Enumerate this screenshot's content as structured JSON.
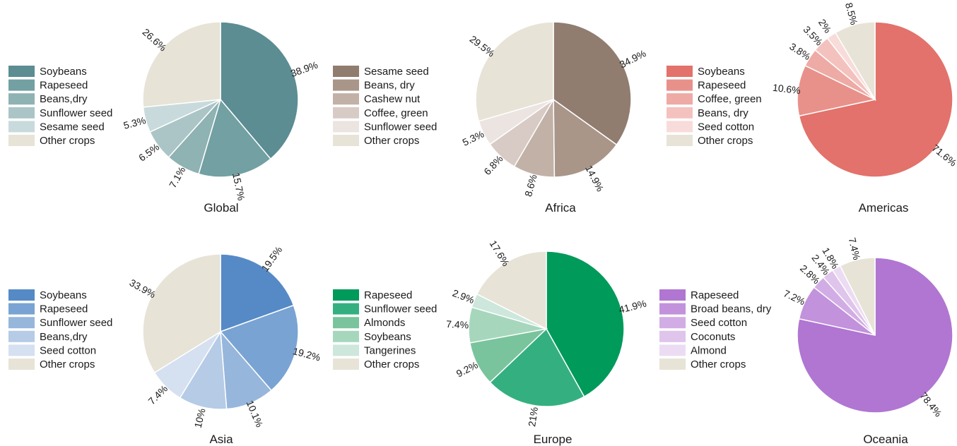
{
  "chart_data": [
    {
      "type": "pie",
      "title": "Global",
      "categories": [
        "Soybeans",
        "Rapeseed",
        "Beans,dry",
        "Sunflower seed",
        "Sesame seed",
        "Other crops"
      ],
      "values": [
        38.9,
        15.7,
        7.1,
        6.5,
        5.3,
        26.6
      ],
      "labels": [
        "38.9%",
        "15.7%",
        "7.1%",
        "6.5%",
        "5.3%",
        "26.6%"
      ],
      "colors": [
        "#5b8d93",
        "#72a0a3",
        "#8fb2b3",
        "#abc5c7",
        "#c9dadd",
        "#e7e3d7"
      ],
      "legend_position": "left"
    },
    {
      "type": "pie",
      "title": "Africa",
      "categories": [
        "Sesame seed",
        "Beans, dry",
        "Cashew nut",
        "Coffee, green",
        "Sunflower seed",
        "Other crops"
      ],
      "values": [
        34.9,
        14.9,
        8.6,
        6.8,
        5.3,
        29.5
      ],
      "labels": [
        "34.9%",
        "14.9%",
        "8.6%",
        "6.8%",
        "5.3%",
        "29.5%"
      ],
      "colors": [
        "#917c70",
        "#a99689",
        "#c2b1a7",
        "#d8cbc5",
        "#ebe4e1",
        "#e7e3d7"
      ],
      "legend_position": "left"
    },
    {
      "type": "pie",
      "title": "Americas",
      "categories": [
        "Soybeans",
        "Rapeseed",
        "Coffee, green",
        "Beans, dry",
        "Seed cotton",
        "Other crops"
      ],
      "values": [
        71.6,
        10.6,
        3.8,
        3.5,
        2,
        8.5
      ],
      "labels": [
        "71.6%",
        "10.6%",
        "3.8%",
        "3.5%",
        "2%",
        "8.5%"
      ],
      "colors": [
        "#e2726b",
        "#e8918a",
        "#eeaaa5",
        "#f4c2be",
        "#f8dcd9",
        "#e7e3d7"
      ],
      "legend_position": "left"
    },
    {
      "type": "pie",
      "title": "Asia",
      "categories": [
        "Soybeans",
        "Rapeseed",
        "Sunflower seed",
        "Beans,dry",
        "Seed cotton",
        "Other crops"
      ],
      "values": [
        19.5,
        19.2,
        10.1,
        10,
        7.4,
        33.9
      ],
      "labels": [
        "19.5%",
        "19.2%",
        "10.1%",
        "10%",
        "7.4%",
        "33.9%"
      ],
      "colors": [
        "#558ac6",
        "#79a3d2",
        "#97b6dc",
        "#b5cbe6",
        "#d5e0f1",
        "#e7e3d7"
      ],
      "legend_position": "left"
    },
    {
      "type": "pie",
      "title": "Europe",
      "categories": [
        "Rapeseed",
        "Sunflower seed",
        "Almonds",
        "Soybeans",
        "Tangerines",
        "Other crops"
      ],
      "values": [
        41.9,
        21,
        9.2,
        7.4,
        2.9,
        17.6
      ],
      "labels": [
        "41.9%",
        "21%",
        "9.2%",
        "7.4%",
        "2.9%",
        "17.6%"
      ],
      "colors": [
        "#009a5a",
        "#34b080",
        "#79c49c",
        "#a6d7bd",
        "#cde7dc",
        "#e7e3d7"
      ],
      "legend_position": "left"
    },
    {
      "type": "pie",
      "title": "Oceania",
      "categories": [
        "Rapeseed",
        "Broad beans, dry",
        "Seed cotton",
        "Coconuts",
        "Almond",
        "Other crops"
      ],
      "values": [
        78.4,
        7.2,
        2.8,
        2.4,
        1.8,
        7.4
      ],
      "labels": [
        "78.4%",
        "7.2%",
        "2.8%",
        "2.4%",
        "1.8%",
        "7.4%"
      ],
      "colors": [
        "#b076d2",
        "#c292dc",
        "#d2ade5",
        "#dfc4ec",
        "#ecdcf3",
        "#e7e3d7"
      ],
      "legend_position": "left"
    }
  ]
}
